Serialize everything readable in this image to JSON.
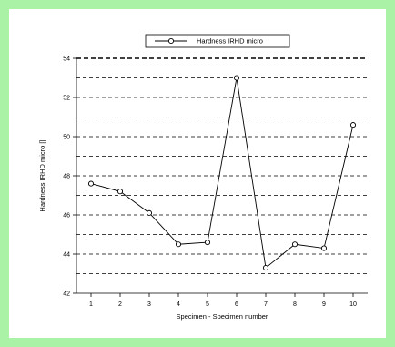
{
  "colors": {
    "frame_border": "#a9f2a6",
    "background": "#ffffff",
    "line": "#000000"
  },
  "chart_data": {
    "type": "line",
    "title": "",
    "xlabel": "Specimen - Specimen number",
    "ylabel": "Hardness IRHD micro []",
    "x": [
      1,
      2,
      3,
      4,
      5,
      6,
      7,
      8,
      9,
      10
    ],
    "x_tick_labels": [
      "1",
      "2",
      "3",
      "4",
      "5",
      "6",
      "7",
      "8",
      "9",
      "10"
    ],
    "xlim": [
      0.5,
      10.5
    ],
    "ylim": [
      42,
      54
    ],
    "y_ticks": [
      42,
      44,
      46,
      48,
      50,
      52,
      54
    ],
    "y_tick_labels": [
      "42",
      "44",
      "46",
      "48",
      "50",
      "52",
      "54"
    ],
    "grid_lines_y": [
      43,
      44,
      45,
      46,
      47,
      48,
      49,
      50,
      51,
      52,
      53,
      54
    ],
    "grid": "dashed horizontal",
    "legend_position": "top-center",
    "series": [
      {
        "name": "Hardness IRHD micro",
        "marker": "open-circle",
        "values": [
          47.6,
          47.2,
          46.1,
          44.5,
          44.6,
          53.0,
          43.3,
          44.5,
          44.3,
          50.6
        ]
      }
    ]
  }
}
